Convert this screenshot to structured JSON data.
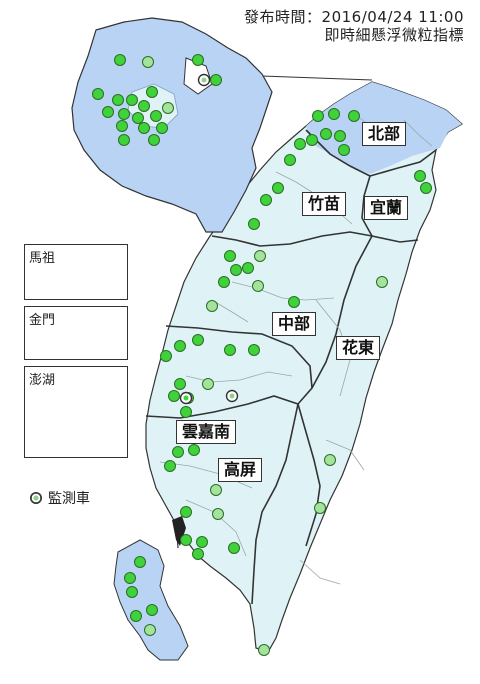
{
  "header": {
    "line1": "發布時間：2016/04/24 11:00",
    "line2": "即時細懸浮微粒指標"
  },
  "insets": [
    {
      "id": "matsu",
      "label": "馬祖"
    },
    {
      "id": "kinmen",
      "label": "金門"
    },
    {
      "id": "penghu",
      "label": "澎湖"
    }
  ],
  "regions": [
    {
      "id": "north",
      "label": "北部"
    },
    {
      "id": "zhumiao",
      "label": "竹苗"
    },
    {
      "id": "yilan",
      "label": "宜蘭"
    },
    {
      "id": "central",
      "label": "中部"
    },
    {
      "id": "hualien-taitung",
      "label": "花東"
    },
    {
      "id": "yunjianan",
      "label": "雲嘉南"
    },
    {
      "id": "gaoping",
      "label": "高屏"
    }
  ],
  "legend": {
    "label": "監測車"
  },
  "colors": {
    "land_light": "#dff3f6",
    "land_north": "#b8d3f4",
    "region_border": "#333333",
    "county_border": "#9aa8a8",
    "good": "#3fd23a",
    "good_light": "#a3e39c",
    "marker_stroke": "#2b6e24"
  }
}
